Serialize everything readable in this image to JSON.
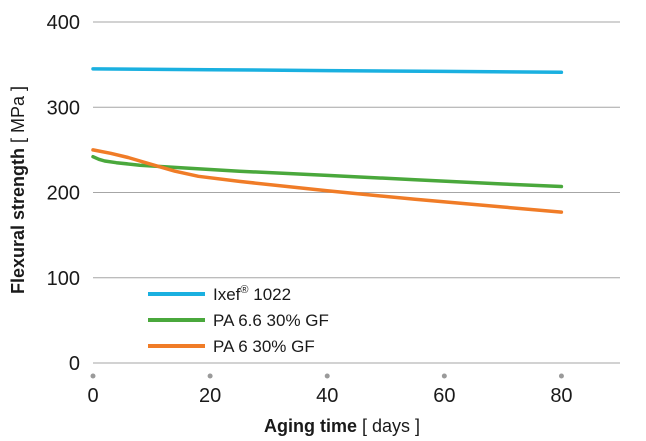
{
  "chart_data": {
    "type": "line",
    "xlabel_bold": "Aging time",
    "xlabel_unit": "[ days ]",
    "ylabel_bold": "Flexural strength",
    "ylabel_unit": "[ MPa ]",
    "xlim": [
      0,
      90
    ],
    "ylim": [
      0,
      400
    ],
    "xticks": [
      0,
      20,
      40,
      60,
      80
    ],
    "yticks": [
      0,
      100,
      200,
      300,
      400
    ],
    "grid": "horizontal",
    "legend_position": "bottom-left",
    "series": [
      {
        "name": "Ixef® 1022",
        "name_main": "Ixef",
        "name_sup": "®",
        "name_rest": " 1022",
        "color": "#1ab0e0",
        "x": [
          0,
          20,
          40,
          60,
          80
        ],
        "y": [
          345,
          344,
          343,
          342,
          341
        ]
      },
      {
        "name": "PA 6.6 30% GF",
        "color": "#4aa83c",
        "x": [
          0,
          1,
          2,
          4,
          8,
          15,
          25,
          40,
          55,
          70,
          80
        ],
        "y": [
          242,
          239,
          237,
          235,
          232,
          229,
          225,
          220,
          215,
          210,
          207
        ]
      },
      {
        "name": "PA 6 30% GF",
        "color": "#f07c27",
        "x": [
          0,
          3,
          6,
          10,
          14,
          18,
          25,
          40,
          55,
          70,
          80
        ],
        "y": [
          250,
          246,
          241,
          233,
          225,
          219,
          213,
          202,
          192,
          183,
          177
        ]
      }
    ]
  }
}
